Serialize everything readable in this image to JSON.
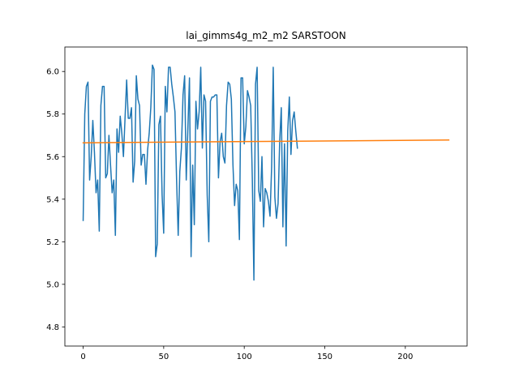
{
  "chart_data": {
    "type": "line",
    "title": "lai_gimms4g_m2_m2 SARSTOON",
    "xlabel": "",
    "ylabel": "",
    "xlim": [
      -11.35,
      238.35
    ],
    "ylim": [
      4.71,
      6.115
    ],
    "x_ticks": [
      0,
      50,
      100,
      150,
      200
    ],
    "y_ticks": [
      4.8,
      5.0,
      5.2,
      5.4,
      5.6,
      5.8,
      6.0
    ],
    "x_tick_labels": [
      "0",
      "50",
      "100",
      "150",
      "200"
    ],
    "y_tick_labels": [
      "4.8",
      "5.0",
      "5.2",
      "5.4",
      "5.6",
      "5.8",
      "6.0"
    ],
    "grid": false,
    "legend": "none",
    "series": [
      {
        "color": "#1f77b4",
        "x_start": 0,
        "x_step": 1,
        "values": [
          5.3,
          5.8,
          5.93,
          5.95,
          5.49,
          5.6,
          5.77,
          5.62,
          5.43,
          5.49,
          5.25,
          5.84,
          5.93,
          5.93,
          5.5,
          5.52,
          5.7,
          5.56,
          5.43,
          5.49,
          5.23,
          5.73,
          5.62,
          5.79,
          5.71,
          5.6,
          5.78,
          5.96,
          5.78,
          5.78,
          5.83,
          5.48,
          5.58,
          5.98,
          5.87,
          5.84,
          5.56,
          5.61,
          5.61,
          5.47,
          5.63,
          5.71,
          5.83,
          6.03,
          6.01,
          5.13,
          5.19,
          5.75,
          5.79,
          5.42,
          5.24,
          5.93,
          5.81,
          6.02,
          6.02,
          5.94,
          5.88,
          5.81,
          5.49,
          5.23,
          5.53,
          5.64,
          5.89,
          5.98,
          5.49,
          5.73,
          5.97,
          5.13,
          5.56,
          5.28,
          5.86,
          5.73,
          5.81,
          6.02,
          5.64,
          5.89,
          5.86,
          5.42,
          5.2,
          5.86,
          5.88,
          5.88,
          5.89,
          5.89,
          5.5,
          5.67,
          5.71,
          5.6,
          5.57,
          5.84,
          5.95,
          5.94,
          5.87,
          5.56,
          5.37,
          5.47,
          5.44,
          5.21,
          5.97,
          5.97,
          5.66,
          5.74,
          5.91,
          5.88,
          5.84,
          5.5,
          5.02,
          5.94,
          6.02,
          5.44,
          5.39,
          5.6,
          5.27,
          5.45,
          5.43,
          5.39,
          5.32,
          5.55,
          6.02,
          5.41,
          5.31,
          5.38,
          5.67,
          5.83,
          5.27,
          5.66,
          5.18,
          5.72,
          5.88,
          5.61,
          5.77,
          5.81,
          5.72,
          5.64
        ]
      },
      {
        "color": "#ff7f0e",
        "x": [
          0,
          227
        ],
        "values": [
          5.665,
          5.678
        ]
      }
    ]
  }
}
